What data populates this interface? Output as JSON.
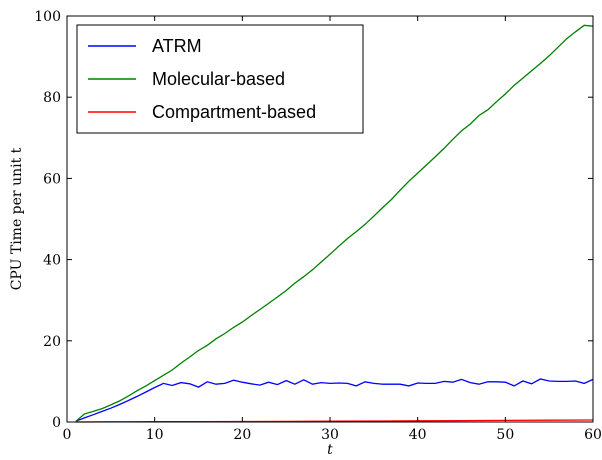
{
  "chart_data": {
    "type": "line",
    "xlabel": "t",
    "ylabel": "CPU Time per unit t",
    "xlim": [
      0,
      60
    ],
    "ylim": [
      0,
      100
    ],
    "xticks": [
      0,
      10,
      20,
      30,
      40,
      50,
      60
    ],
    "yticks": [
      0,
      20,
      40,
      60,
      80,
      100
    ],
    "xtick_labels": [
      "0",
      "10",
      "20",
      "30",
      "40",
      "50",
      "60"
    ],
    "ytick_labels": [
      "0",
      "20",
      "40",
      "60",
      "80",
      "100"
    ],
    "grid": false,
    "legend_position": "top-left",
    "series": [
      {
        "name": "ATRM",
        "color": "#0000ff",
        "x": [
          1,
          2,
          3,
          4,
          5,
          6,
          7,
          8,
          9,
          10,
          11,
          12,
          13,
          14,
          15,
          16,
          17,
          18,
          19,
          20,
          21,
          22,
          23,
          24,
          25,
          26,
          27,
          28,
          29,
          30,
          31,
          32,
          33,
          34,
          35,
          36,
          37,
          38,
          39,
          40,
          41,
          42,
          43,
          44,
          45,
          46,
          47,
          48,
          49,
          50,
          51,
          52,
          53,
          54,
          55,
          56,
          57,
          58,
          59,
          60
        ],
        "y": [
          0.2,
          1.0,
          1.8,
          2.6,
          3.4,
          4.3,
          5.3,
          6.3,
          7.4,
          8.5,
          9.5,
          9.0,
          9.7,
          9.4,
          8.6,
          9.9,
          9.3,
          9.5,
          10.3,
          9.8,
          9.4,
          9.1,
          9.8,
          9.2,
          10.2,
          9.3,
          10.4,
          9.3,
          9.7,
          9.5,
          9.6,
          9.5,
          8.9,
          9.9,
          9.5,
          9.3,
          9.3,
          9.3,
          8.9,
          9.6,
          9.5,
          9.5,
          10.0,
          9.8,
          10.5,
          9.7,
          9.3,
          9.9,
          9.9,
          9.8,
          8.9,
          10.1,
          9.4,
          10.6,
          10.1,
          10.0,
          10.0,
          10.1,
          9.5,
          10.5
        ]
      },
      {
        "name": "Molecular-based",
        "color": "#008000",
        "x": [
          1,
          2,
          3,
          4,
          5,
          6,
          7,
          8,
          9,
          10,
          11,
          12,
          13,
          14,
          15,
          16,
          17,
          18,
          19,
          20,
          21,
          22,
          23,
          24,
          25,
          26,
          27,
          28,
          29,
          30,
          31,
          32,
          33,
          34,
          35,
          36,
          37,
          38,
          39,
          40,
          41,
          42,
          43,
          44,
          45,
          46,
          47,
          48,
          49,
          50,
          51,
          52,
          53,
          54,
          55,
          56,
          57,
          58,
          59,
          60
        ],
        "y": [
          0.2,
          2.0,
          2.6,
          3.3,
          4.2,
          5.2,
          6.4,
          7.7,
          8.9,
          10.2,
          11.5,
          12.8,
          14.5,
          16.0,
          17.6,
          18.9,
          20.5,
          21.8,
          23.3,
          24.6,
          26.2,
          27.7,
          29.2,
          30.8,
          32.4,
          34.2,
          35.8,
          37.5,
          39.4,
          41.3,
          43.3,
          45.2,
          46.9,
          48.7,
          50.7,
          52.8,
          54.8,
          57.1,
          59.3,
          61.3,
          63.3,
          65.3,
          67.4,
          69.6,
          71.7,
          73.4,
          75.5,
          76.9,
          78.9,
          80.8,
          82.9,
          84.7,
          86.5,
          88.3,
          90.2,
          92.3,
          94.4,
          96.1,
          97.7,
          97.5
        ]
      },
      {
        "name": "Compartment-based",
        "color": "#ff0000",
        "x": [
          1,
          5,
          10,
          15,
          20,
          25,
          30,
          35,
          40,
          45,
          50,
          55,
          60
        ],
        "y": [
          0.0,
          0.05,
          0.08,
          0.1,
          0.12,
          0.15,
          0.2,
          0.25,
          0.3,
          0.35,
          0.4,
          0.45,
          0.5
        ]
      }
    ]
  }
}
